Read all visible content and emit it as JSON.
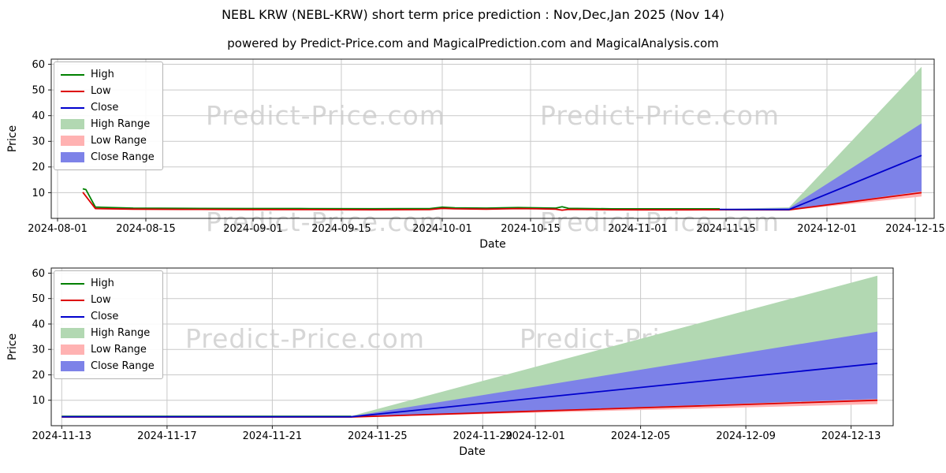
{
  "title": "NEBL KRW (NEBL-KRW) short term price prediction : Nov,Dec,Jan 2025 (Nov 14)",
  "subtitle": "powered by Predict-Price.com and MagicalPrediction.com and MagicalAnalysis.com",
  "watermark": "Predict-Price.com",
  "colors": {
    "high": "#008000",
    "low": "#dd0000",
    "close": "#0000cd",
    "high_range": "#b2d8b2",
    "low_range": "#ffb2b2",
    "close_range": "#7d82e8",
    "grid": "#c9c9c9",
    "spine": "#1a1a1a",
    "tick_text": "#000000"
  },
  "legend": [
    {
      "label": "High",
      "type": "line",
      "color_key": "high"
    },
    {
      "label": "Low",
      "type": "line",
      "color_key": "low"
    },
    {
      "label": "Close",
      "type": "line",
      "color_key": "close"
    },
    {
      "label": "High Range",
      "type": "patch",
      "color_key": "high_range"
    },
    {
      "label": "Low Range",
      "type": "patch",
      "color_key": "low_range"
    },
    {
      "label": "Close Range",
      "type": "patch",
      "color_key": "close_range"
    }
  ],
  "chart_data": [
    {
      "type": "line",
      "title": "",
      "xlabel": "Date",
      "ylabel": "Price",
      "x_unit": "days since 2024-08-01",
      "xlim": [
        -1,
        139
      ],
      "ylim": [
        0,
        62
      ],
      "yticks": [
        10,
        20,
        30,
        40,
        50,
        60
      ],
      "xticks": [
        {
          "pos": 0,
          "label": "2024-08-01"
        },
        {
          "pos": 14,
          "label": "2024-08-15"
        },
        {
          "pos": 31,
          "label": "2024-09-01"
        },
        {
          "pos": 45,
          "label": "2024-09-15"
        },
        {
          "pos": 61,
          "label": "2024-10-01"
        },
        {
          "pos": 75,
          "label": "2024-10-15"
        },
        {
          "pos": 92,
          "label": "2024-11-01"
        },
        {
          "pos": 106,
          "label": "2024-11-15"
        },
        {
          "pos": 122,
          "label": "2024-12-01"
        },
        {
          "pos": 136,
          "label": "2024-12-15"
        }
      ],
      "bands": [
        {
          "name": "High Range",
          "color_key": "high_range",
          "x": [
            105,
            116,
            137
          ],
          "top": [
            3.6,
            4.3,
            59.0
          ],
          "bottom": [
            3.6,
            3.4,
            9.5
          ]
        },
        {
          "name": "Low Range",
          "color_key": "low_range",
          "x": [
            105,
            116,
            137
          ],
          "top": [
            3.6,
            3.6,
            10.5
          ],
          "bottom": [
            3.6,
            3.1,
            8.5
          ]
        },
        {
          "name": "Close Range",
          "color_key": "close_range",
          "x": [
            105,
            116,
            137
          ],
          "top": [
            3.6,
            4.0,
            37.0
          ],
          "bottom": [
            3.6,
            3.3,
            10.5
          ]
        }
      ],
      "series": [
        {
          "name": "High",
          "color_key": "high",
          "points": [
            [
              4,
              11.5
            ],
            [
              4.5,
              11.2
            ],
            [
              6,
              4.4
            ],
            [
              12,
              4.0
            ],
            [
              20,
              3.9
            ],
            [
              30,
              3.85
            ],
            [
              40,
              3.8
            ],
            [
              50,
              3.75
            ],
            [
              59,
              3.8
            ],
            [
              61,
              4.35
            ],
            [
              63,
              4.1
            ],
            [
              68,
              4.0
            ],
            [
              73,
              4.2
            ],
            [
              76,
              4.1
            ],
            [
              79,
              4.0
            ],
            [
              80,
              4.5
            ],
            [
              81,
              3.9
            ],
            [
              85,
              3.8
            ],
            [
              88,
              3.7
            ],
            [
              92,
              3.7
            ],
            [
              100,
              3.7
            ],
            [
              105,
              3.7
            ]
          ]
        },
        {
          "name": "Low",
          "color_key": "low",
          "points": [
            [
              4,
              10.2
            ],
            [
              6,
              3.8
            ],
            [
              12,
              3.6
            ],
            [
              20,
              3.5
            ],
            [
              30,
              3.45
            ],
            [
              40,
              3.4
            ],
            [
              50,
              3.35
            ],
            [
              59,
              3.4
            ],
            [
              61,
              3.9
            ],
            [
              63,
              3.7
            ],
            [
              68,
              3.6
            ],
            [
              73,
              3.8
            ],
            [
              76,
              3.7
            ],
            [
              79,
              3.6
            ],
            [
              80,
              3.2
            ],
            [
              81,
              3.5
            ],
            [
              85,
              3.4
            ],
            [
              88,
              3.35
            ],
            [
              92,
              3.3
            ],
            [
              100,
              3.3
            ],
            [
              105,
              3.35
            ],
            [
              116,
              3.3
            ],
            [
              137,
              10.0
            ]
          ]
        },
        {
          "name": "Close",
          "color_key": "close",
          "points": [
            [
              105,
              3.5
            ],
            [
              116,
              3.45
            ],
            [
              137,
              24.5
            ]
          ]
        }
      ]
    },
    {
      "type": "line",
      "title": "",
      "xlabel": "Date",
      "ylabel": "Price",
      "x_unit": "days since 2024-11-13",
      "xlim": [
        -0.4,
        31.6
      ],
      "ylim": [
        0,
        62
      ],
      "yticks": [
        10,
        20,
        30,
        40,
        50,
        60
      ],
      "xticks": [
        {
          "pos": 0,
          "label": "2024-11-13"
        },
        {
          "pos": 4,
          "label": "2024-11-17"
        },
        {
          "pos": 8,
          "label": "2024-11-21"
        },
        {
          "pos": 12,
          "label": "2024-11-25"
        },
        {
          "pos": 16,
          "label": "2024-11-29"
        },
        {
          "pos": 18,
          "label": "2024-12-01"
        },
        {
          "pos": 22,
          "label": "2024-12-05"
        },
        {
          "pos": 26,
          "label": "2024-12-09"
        },
        {
          "pos": 30,
          "label": "2024-12-13"
        }
      ],
      "bands": [
        {
          "name": "High Range",
          "color_key": "high_range",
          "x": [
            0,
            11,
            31
          ],
          "top": [
            3.6,
            3.8,
            59.0
          ],
          "bottom": [
            3.6,
            3.5,
            9.5
          ]
        },
        {
          "name": "Low Range",
          "color_key": "low_range",
          "x": [
            0,
            11,
            31
          ],
          "top": [
            3.6,
            3.6,
            10.5
          ],
          "bottom": [
            3.6,
            3.3,
            8.5
          ]
        },
        {
          "name": "Close Range",
          "color_key": "close_range",
          "x": [
            0,
            11,
            31
          ],
          "top": [
            3.6,
            3.7,
            37.0
          ],
          "bottom": [
            3.6,
            3.4,
            10.5
          ]
        }
      ],
      "series": [
        {
          "name": "High",
          "color_key": "high",
          "points": [
            [
              0,
              3.7
            ],
            [
              11,
              3.7
            ]
          ]
        },
        {
          "name": "Low",
          "color_key": "low",
          "points": [
            [
              0,
              3.4
            ],
            [
              11,
              3.4
            ],
            [
              31,
              10.0
            ]
          ]
        },
        {
          "name": "Close",
          "color_key": "close",
          "points": [
            [
              0,
              3.5
            ],
            [
              11,
              3.5
            ],
            [
              31,
              24.5
            ]
          ]
        }
      ]
    }
  ]
}
